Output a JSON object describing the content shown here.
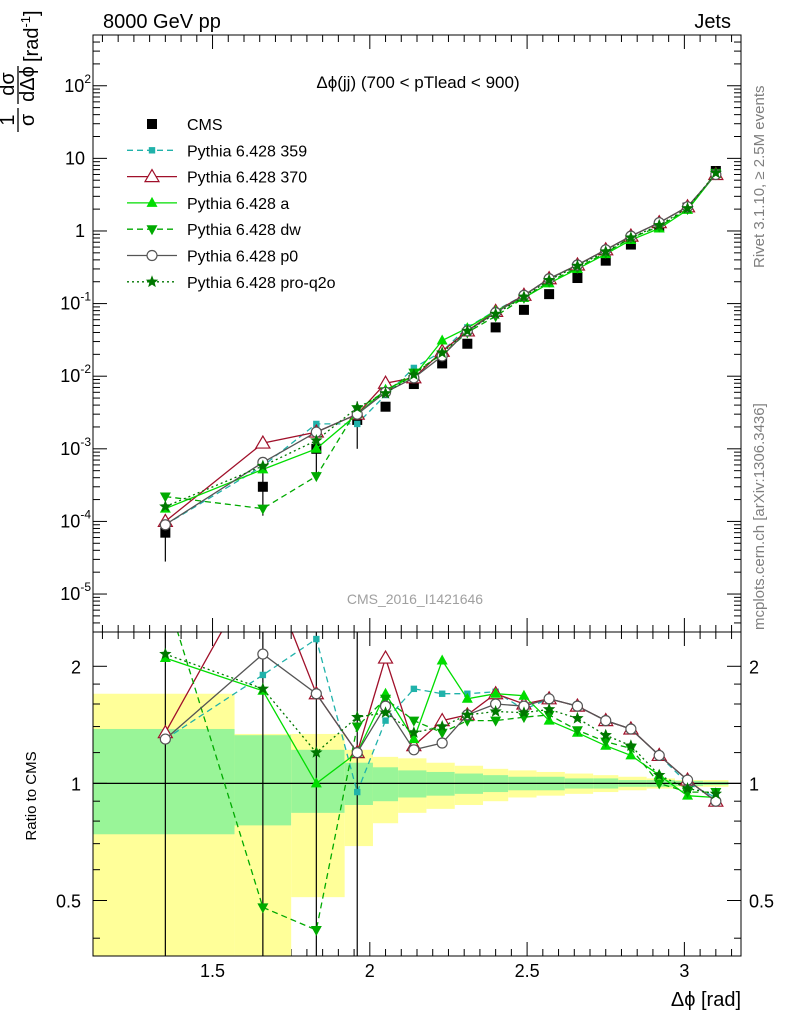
{
  "header": {
    "left": "8000 GeV pp",
    "right": "Jets"
  },
  "side_text": {
    "top": "Rivet 3.1.10, ≥ 2.5M events",
    "bottom": "mcplots.cern.ch [arXiv:1306.3436]"
  },
  "watermark": "CMS_2016_I1421646",
  "chart_data": [
    {
      "type": "line",
      "title": "Δϕ(jj) (700 < pTlead <  900)",
      "ylabel": "1/σ dσ/dΔϕ [rad⁻¹]",
      "ylabel_parts": {
        "num": "1",
        "den": "σ",
        "num2": "dσ",
        "den2": "dΔϕ",
        "unit": "[rad",
        "unit_exp": "-1",
        "unit_close": "]"
      },
      "yscale": "log",
      "ylim": [
        3e-06,
        500
      ],
      "xlim": [
        1.12,
        3.18
      ],
      "ytick_labels": [
        {
          "b": "10",
          "e": "-5",
          "v": 1e-05
        },
        {
          "b": "10",
          "e": "-4",
          "v": 0.0001
        },
        {
          "b": "10",
          "e": "-3",
          "v": 0.001
        },
        {
          "b": "10",
          "e": "-2",
          "v": 0.01
        },
        {
          "b": "10",
          "e": "-1",
          "v": 0.1
        },
        {
          "b": "1",
          "e": "",
          "v": 1
        },
        {
          "b": "10",
          "e": "",
          "v": 10
        },
        {
          "b": "10",
          "e": "2",
          "v": 100
        }
      ],
      "x": [
        1.35,
        1.66,
        1.83,
        1.96,
        2.05,
        2.14,
        2.23,
        2.31,
        2.4,
        2.49,
        2.57,
        2.66,
        2.75,
        2.83,
        2.92,
        3.01,
        3.1
      ],
      "series": [
        {
          "name": "CMS",
          "color": "#000000",
          "marker": "square",
          "dash": "",
          "values": [
            7e-05,
            0.0003,
            0.001,
            0.0025,
            0.0038,
            0.0078,
            0.015,
            0.028,
            0.047,
            0.082,
            0.135,
            0.225,
            0.39,
            0.65,
            1.15,
            2.1,
            6.7
          ]
        },
        {
          "name": "Pythia 6.428 359",
          "color": "#20b2aa",
          "marker": "smallsquare",
          "dash": "6,4",
          "values": [
            9e-05,
            0.00058,
            0.0022,
            0.0022,
            0.0055,
            0.013,
            0.022,
            0.047,
            0.08,
            0.13,
            0.22,
            0.34,
            0.55,
            0.85,
            1.3,
            2.15,
            6.0
          ]
        },
        {
          "name": "Pythia 6.428 370",
          "color": "#a0102a",
          "marker": "triangle-open",
          "dash": "",
          "values": [
            0.0001,
            0.0012,
            0.0017,
            0.003,
            0.008,
            0.0095,
            0.022,
            0.042,
            0.078,
            0.13,
            0.22,
            0.34,
            0.55,
            0.85,
            1.3,
            2.15,
            6.0
          ]
        },
        {
          "name": "Pythia 6.428 a",
          "color": "#00dd00",
          "marker": "triangle",
          "dash": "",
          "values": [
            0.00015,
            0.00052,
            0.001,
            0.003,
            0.0065,
            0.01,
            0.031,
            0.046,
            0.079,
            0.12,
            0.19,
            0.3,
            0.48,
            0.75,
            1.08,
            1.95,
            6.1
          ]
        },
        {
          "name": "Pythia 6.428 dw",
          "color": "#00aa00",
          "marker": "triangle-down",
          "dash": "6,4",
          "values": [
            0.00022,
            0.00015,
            0.00042,
            0.0035,
            0.0062,
            0.0112,
            0.02,
            0.04,
            0.067,
            0.12,
            0.2,
            0.31,
            0.5,
            0.8,
            1.15,
            2.0,
            6.3
          ]
        },
        {
          "name": "Pythia 6.428 p0",
          "color": "#555555",
          "marker": "circle-open",
          "dash": "",
          "values": [
            9e-05,
            0.00065,
            0.0017,
            0.003,
            0.006,
            0.0095,
            0.019,
            0.042,
            0.075,
            0.13,
            0.22,
            0.34,
            0.55,
            0.85,
            1.3,
            2.15,
            6.0
          ]
        },
        {
          "name": "Pythia 6.428 pro-q2o",
          "color": "#007700",
          "marker": "star",
          "dash": "2,3",
          "values": [
            0.00016,
            0.00058,
            0.0013,
            0.0037,
            0.0058,
            0.0105,
            0.021,
            0.042,
            0.072,
            0.124,
            0.21,
            0.33,
            0.52,
            0.81,
            1.2,
            2.05,
            6.3
          ]
        }
      ]
    },
    {
      "type": "line",
      "ylabel": "Ratio to CMS",
      "xlabel": "Δϕ [rad]",
      "yscale": "log",
      "ylim": [
        0.36,
        2.45
      ],
      "xlim": [
        1.12,
        3.18
      ],
      "xtick_labels": [
        "1.5",
        "2",
        "2.5",
        "3"
      ],
      "xtick_values": [
        1.5,
        2.0,
        2.5,
        3.0
      ],
      "ytick_labels": [
        "0.5",
        "1",
        "2"
      ],
      "ytick_values": [
        0.5,
        1,
        2
      ],
      "x": [
        1.35,
        1.66,
        1.83,
        1.96,
        2.05,
        2.14,
        2.23,
        2.31,
        2.4,
        2.49,
        2.57,
        2.66,
        2.75,
        2.83,
        2.92,
        3.01,
        3.1
      ],
      "bins": [
        1.12,
        1.57,
        1.75,
        1.92,
        2.01,
        2.09,
        2.18,
        2.27,
        2.36,
        2.44,
        2.53,
        2.62,
        2.71,
        2.79,
        2.88,
        2.97,
        3.06,
        3.14
      ],
      "band_stat": [
        [
          0.74,
          1.38
        ],
        [
          0.78,
          1.33
        ],
        [
          0.84,
          1.22
        ],
        [
          0.88,
          1.13
        ],
        [
          0.9,
          1.1
        ],
        [
          0.92,
          1.08
        ],
        [
          0.93,
          1.07
        ],
        [
          0.94,
          1.06
        ],
        [
          0.95,
          1.05
        ],
        [
          0.96,
          1.04
        ],
        [
          0.96,
          1.04
        ],
        [
          0.97,
          1.03
        ],
        [
          0.97,
          1.03
        ],
        [
          0.98,
          1.02
        ],
        [
          0.98,
          1.02
        ],
        [
          0.985,
          1.015
        ],
        [
          0.99,
          1.01
        ]
      ],
      "band_total": [
        [
          0.36,
          1.7
        ],
        [
          0.36,
          1.34
        ],
        [
          0.51,
          1.34
        ],
        [
          0.69,
          1.22
        ],
        [
          0.79,
          1.17
        ],
        [
          0.84,
          1.16
        ],
        [
          0.86,
          1.13
        ],
        [
          0.88,
          1.11
        ],
        [
          0.9,
          1.09
        ],
        [
          0.92,
          1.08
        ],
        [
          0.93,
          1.07
        ],
        [
          0.94,
          1.06
        ],
        [
          0.95,
          1.05
        ],
        [
          0.96,
          1.04
        ],
        [
          0.97,
          1.03
        ],
        [
          0.98,
          1.02
        ],
        [
          0.98,
          1.02
        ]
      ],
      "series": [
        {
          "name": "Pythia 6.428 359",
          "values": [
            1.3,
            1.9,
            2.35,
            0.95,
            1.45,
            1.75,
            1.7,
            1.7,
            1.72,
            1.55,
            1.65,
            1.58,
            1.45,
            1.38,
            1.18,
            1.0,
            0.92
          ]
        },
        {
          "name": "Pythia 6.428 370",
          "values": [
            1.35,
            3.8,
            1.7,
            1.2,
            2.1,
            1.25,
            1.45,
            1.5,
            1.7,
            1.6,
            1.65,
            1.58,
            1.45,
            1.38,
            1.18,
            1.02,
            0.9
          ]
        },
        {
          "name": "Pythia 6.428 a",
          "values": [
            2.1,
            1.73,
            1.0,
            1.2,
            1.7,
            1.3,
            2.07,
            1.65,
            1.7,
            1.68,
            1.45,
            1.35,
            1.25,
            1.18,
            1.05,
            0.93,
            0.92
          ]
        },
        {
          "name": "Pythia 6.428 dw",
          "values": [
            3.1,
            0.48,
            0.42,
            1.4,
            1.65,
            1.45,
            1.35,
            1.45,
            1.45,
            1.48,
            1.5,
            1.37,
            1.28,
            1.23,
            1.0,
            0.95,
            0.95
          ]
        },
        {
          "name": "Pythia 6.428 p0",
          "values": [
            1.3,
            2.15,
            1.7,
            1.2,
            1.58,
            1.22,
            1.27,
            1.5,
            1.6,
            1.58,
            1.65,
            1.58,
            1.45,
            1.38,
            1.18,
            1.02,
            0.9
          ]
        },
        {
          "name": "Pythia 6.428 pro-q2o",
          "values": [
            2.15,
            1.75,
            1.2,
            1.48,
            1.52,
            1.35,
            1.4,
            1.5,
            1.53,
            1.52,
            1.55,
            1.47,
            1.33,
            1.25,
            1.05,
            0.97,
            0.94
          ]
        }
      ]
    }
  ]
}
